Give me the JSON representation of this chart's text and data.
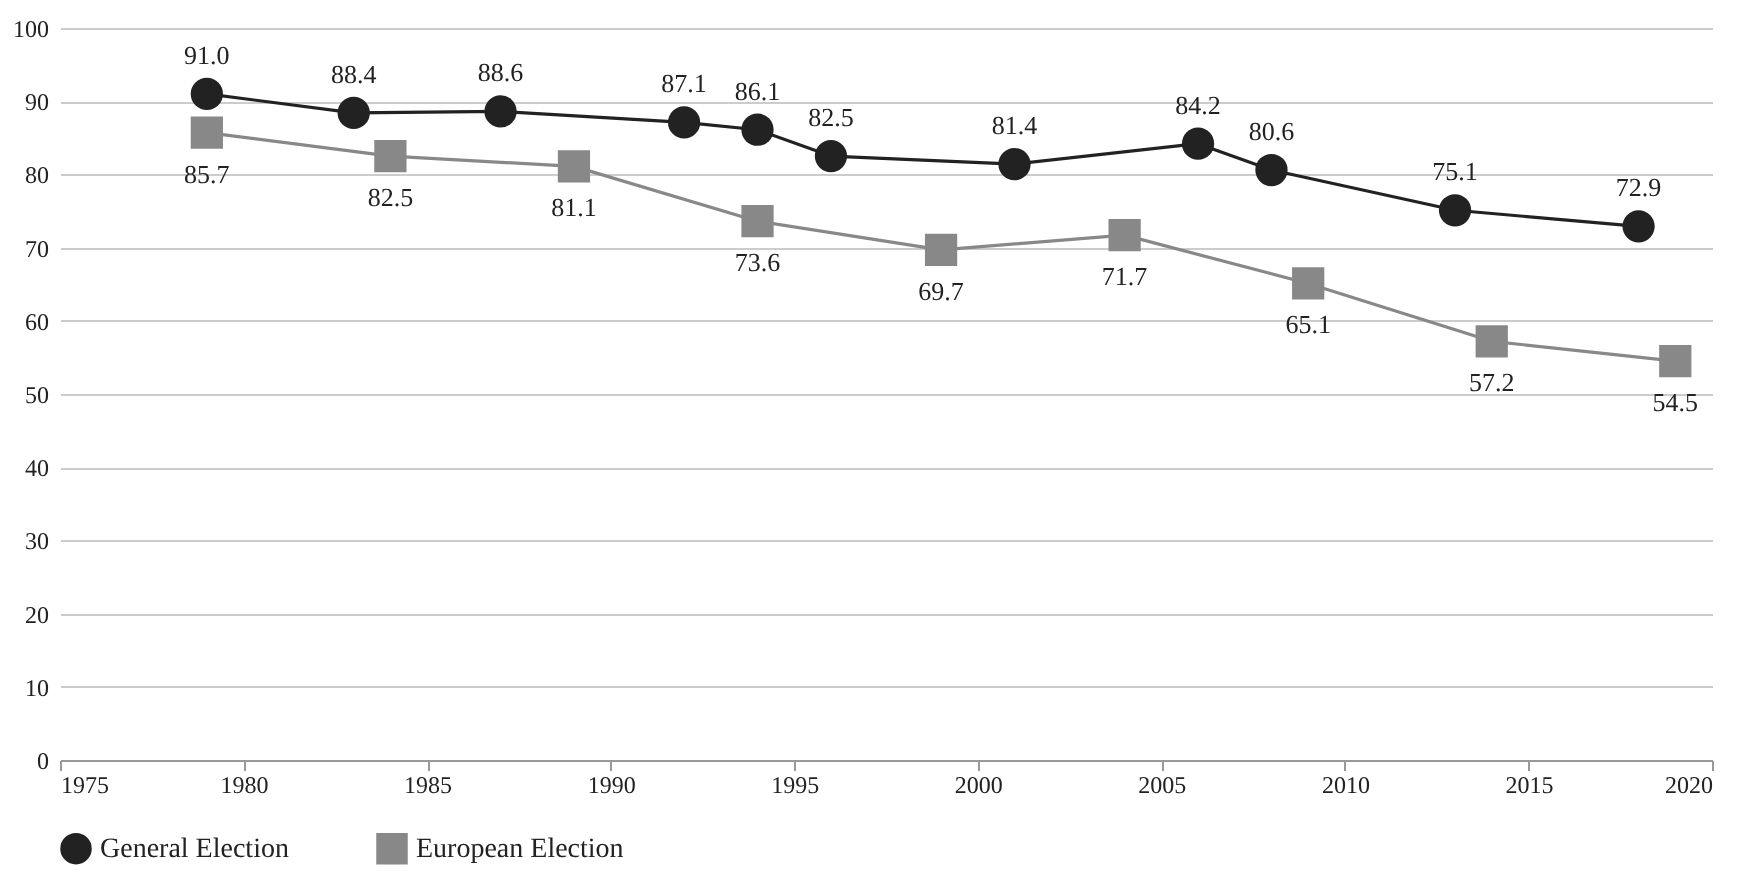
{
  "chart_data": {
    "type": "line",
    "xlim": [
      1975,
      2020
    ],
    "xticks": [
      1975,
      1980,
      1985,
      1990,
      1995,
      2000,
      2005,
      2010,
      2015,
      2020
    ],
    "ylim": [
      0,
      100
    ],
    "yticks": [
      0,
      10,
      20,
      30,
      40,
      50,
      60,
      70,
      80,
      90,
      100
    ],
    "grid": "y",
    "legend": "bottom",
    "line_style": "solid",
    "series": [
      {
        "name": "General Election",
        "color": "#222222",
        "marker": "circle",
        "x": [
          1979,
          1983,
          1987,
          1992,
          1994,
          1996,
          2001,
          2006,
          2008,
          2013,
          2018
        ],
        "values": [
          91.0,
          88.4,
          88.6,
          87.1,
          86.1,
          82.5,
          81.4,
          84.2,
          80.6,
          75.1,
          72.9
        ],
        "value_labels": [
          "91.0",
          "88.4",
          "88.6",
          "87.1",
          "86.1",
          "82.5",
          "81.4",
          "84.2",
          "80.6",
          "75.1",
          "72.9"
        ]
      },
      {
        "name": "European Election",
        "color": "#888888",
        "marker": "square",
        "x": [
          1979,
          1984,
          1989,
          1994,
          1999,
          2004,
          2009,
          2014,
          2019
        ],
        "values": [
          85.7,
          82.5,
          81.1,
          73.6,
          69.7,
          71.7,
          65.1,
          57.2,
          54.5
        ],
        "value_labels": [
          "85.7",
          "82.5",
          "81.1",
          "73.6",
          "69.7",
          "71.7",
          "65.1",
          "57.2",
          "54.5"
        ]
      }
    ]
  }
}
